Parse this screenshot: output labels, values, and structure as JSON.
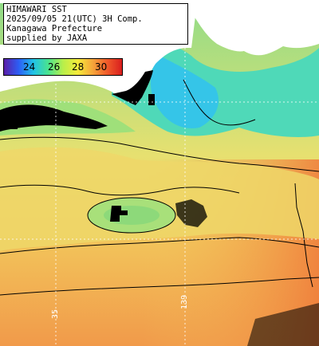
{
  "title": {
    "lines": [
      "HIMAWARI SST",
      "2025/09/05 21(UTC) 3H Comp.",
      "Kanagawa Prefecture",
      "supplied by JAXA"
    ]
  },
  "colorbar": {
    "ticks": [
      "24",
      "26",
      "28",
      "30"
    ],
    "colors": [
      "#5a1ea8",
      "#2c5ef5",
      "#21c3e6",
      "#4ae38e",
      "#b8ef4a",
      "#f4ea3a",
      "#f6a63a",
      "#f05a2a",
      "#d91e1e"
    ]
  },
  "map": {
    "land_color": "#ffffff",
    "missing_color": "#000000",
    "contour_color": "#000000",
    "grid_color": "#ffffff",
    "warm_color": "#f0a35a",
    "mid_color": "#f2d665",
    "cool_color": "#9fe07a",
    "cold_color": "#3fd8c8"
  },
  "grid_labels": [
    "35",
    "139"
  ]
}
